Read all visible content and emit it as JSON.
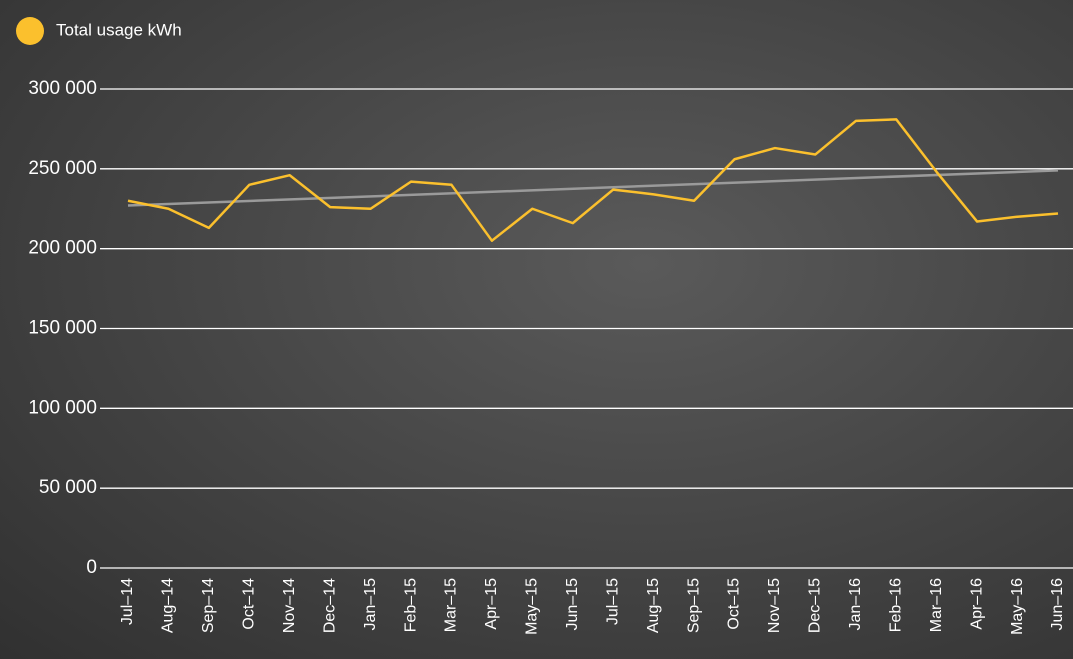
{
  "chart_data": {
    "type": "line",
    "categories": [
      "Jul–14",
      "Aug–14",
      "Sep–14",
      "Oct–14",
      "Nov–14",
      "Dec–14",
      "Jan–15",
      "Feb–15",
      "Mar–15",
      "Apr–15",
      "May–15",
      "Jun–15",
      "Jul–15",
      "Aug–15",
      "Sep–15",
      "Oct–15",
      "Nov–15",
      "Dec–15",
      "Jan–16",
      "Feb–16",
      "Mar–16",
      "Apr–16",
      "May–16",
      "Jun–16"
    ],
    "series": [
      {
        "name": "Total usage kWh",
        "color": "#fbc02d",
        "values": [
          230000,
          225000,
          213000,
          240000,
          246000,
          226000,
          225000,
          242000,
          240000,
          205000,
          225000,
          216000,
          237000,
          234000,
          230000,
          256000,
          263000,
          259000,
          280000,
          281000,
          248000,
          217000,
          220000,
          222000
        ]
      }
    ],
    "trendline": {
      "start": 227000,
      "end": 249000,
      "color": "#9a9a9a"
    },
    "ylim": [
      0,
      300000
    ],
    "yticks": [
      0,
      {
        "value": 50000,
        "label": "50 000"
      },
      {
        "value": 100000,
        "label": "100 000"
      },
      {
        "value": 150000,
        "label": "150 000"
      },
      {
        "value": 200000,
        "label": "200 000"
      },
      {
        "value": 250000,
        "label": "250 000"
      },
      {
        "value": 300000,
        "label": "300 000"
      }
    ],
    "grid": true
  }
}
